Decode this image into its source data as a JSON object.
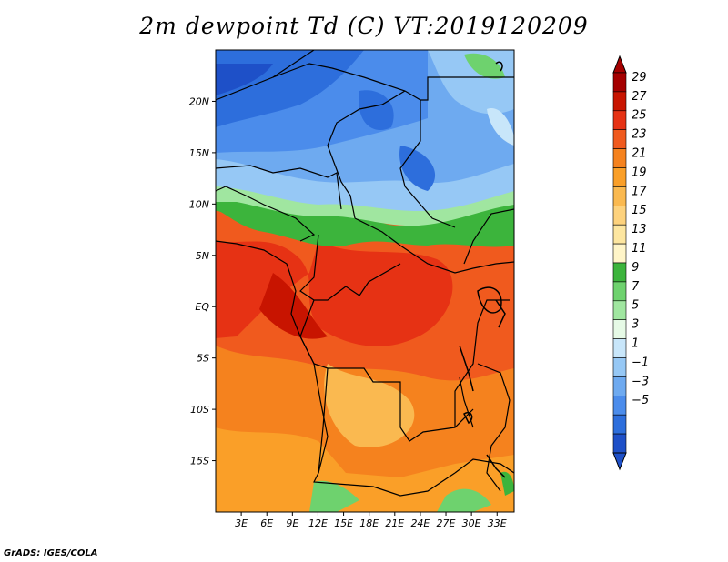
{
  "title": "2m dewpoint Td (C) VT:2019120209",
  "credit": "GrADS: IGES/COLA",
  "map": {
    "lon_range": [
      0,
      35
    ],
    "lat_range": [
      -20,
      25
    ],
    "lat_labels": [
      {
        "v": 20,
        "t": "20N"
      },
      {
        "v": 15,
        "t": "15N"
      },
      {
        "v": 10,
        "t": "10N"
      },
      {
        "v": 5,
        "t": "5N"
      },
      {
        "v": 0,
        "t": "EQ"
      },
      {
        "v": -5,
        "t": "5S"
      },
      {
        "v": -10,
        "t": "10S"
      },
      {
        "v": -15,
        "t": "15S"
      }
    ],
    "lon_labels": [
      {
        "v": 3,
        "t": "3E"
      },
      {
        "v": 6,
        "t": "6E"
      },
      {
        "v": 9,
        "t": "9E"
      },
      {
        "v": 12,
        "t": "12E"
      },
      {
        "v": 15,
        "t": "15E"
      },
      {
        "v": 18,
        "t": "18E"
      },
      {
        "v": 21,
        "t": "21E"
      },
      {
        "v": 24,
        "t": "24E"
      },
      {
        "v": 27,
        "t": "27E"
      },
      {
        "v": 30,
        "t": "30E"
      },
      {
        "v": 33,
        "t": "33E"
      }
    ]
  },
  "colorbar": {
    "labels": [
      "29",
      "27",
      "25",
      "23",
      "21",
      "19",
      "17",
      "15",
      "13",
      "11",
      "9",
      "7",
      "5",
      "3",
      "1",
      "−1",
      "−3",
      "−5"
    ],
    "colors": [
      "#a50000",
      "#c81400",
      "#e63214",
      "#f05a1e",
      "#f5821e",
      "#fa9f28",
      "#fab950",
      "#fdd27d",
      "#fde6a0",
      "#fff5c8",
      "#3cb43c",
      "#6ed26e",
      "#a0e6a0",
      "#e6fae6",
      "#c8e6fa",
      "#96c8f5",
      "#6eaaf0",
      "#4b8ceb",
      "#2d6edc",
      "#1e50c8"
    ],
    "top_color": "#a50000",
    "bottom_color": "#1e50c8"
  }
}
